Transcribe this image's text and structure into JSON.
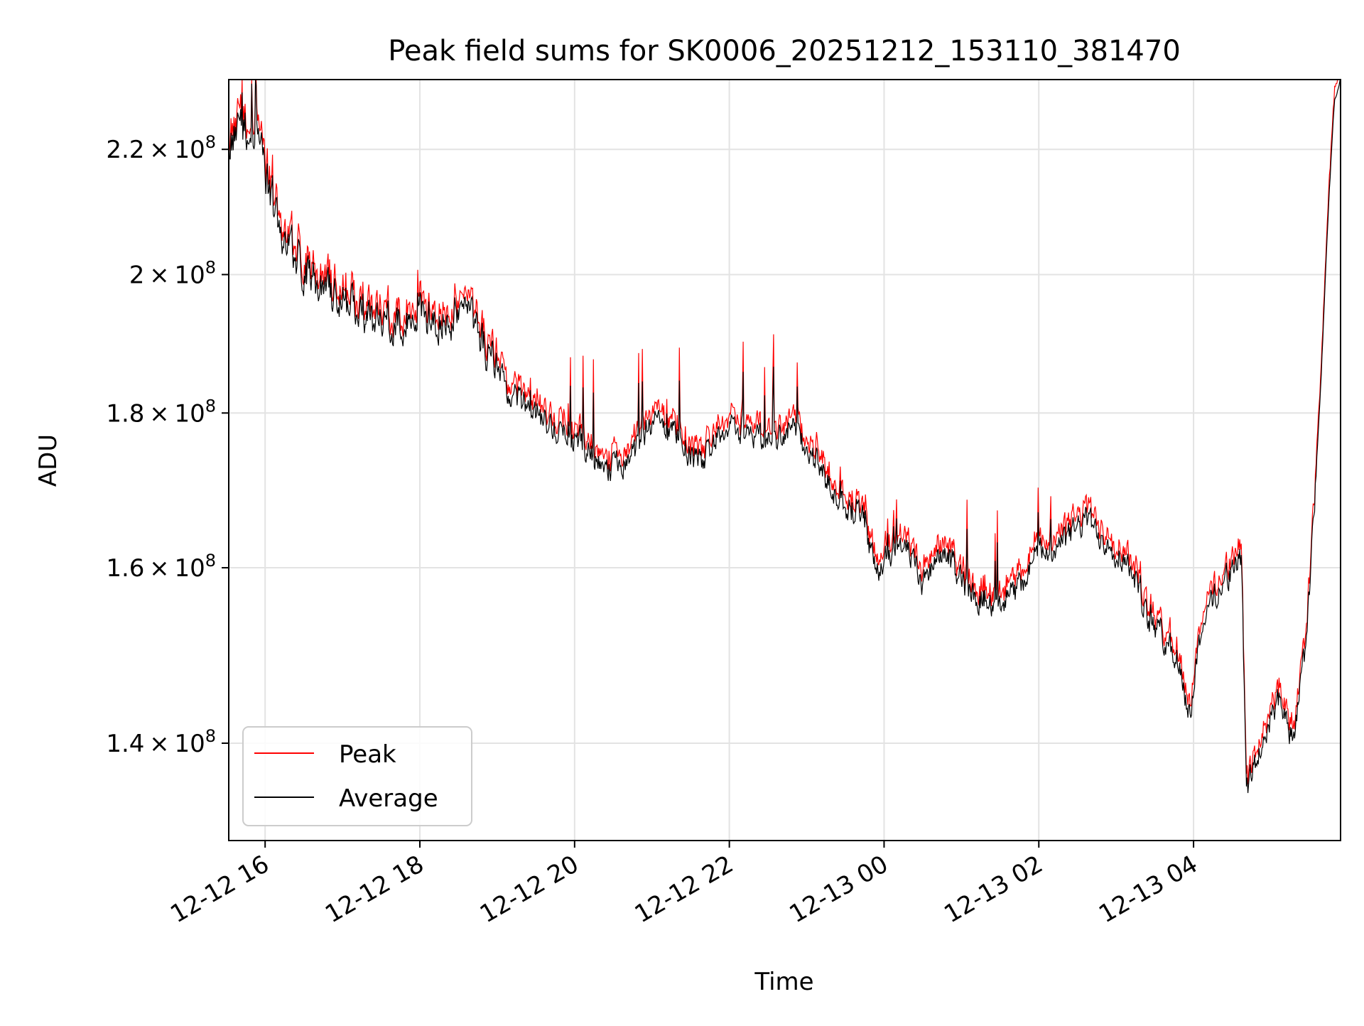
{
  "chart_data": {
    "type": "line",
    "title": "Peak field sums for SK0006_20251212_153110_381470",
    "xlabel": "Time",
    "ylabel": "ADU",
    "x_range_hours": [
      15.53,
      29.9
    ],
    "y_scale": "log",
    "ylim": [
      130000000,
      232000000
    ],
    "x_ticks": [
      {
        "hour": 16,
        "label": "12-12 16"
      },
      {
        "hour": 18,
        "label": "12-12 18"
      },
      {
        "hour": 20,
        "label": "12-12 20"
      },
      {
        "hour": 22,
        "label": "12-12 22"
      },
      {
        "hour": 24,
        "label": "12-13 00"
      },
      {
        "hour": 26,
        "label": "12-13 02"
      },
      {
        "hour": 28,
        "label": "12-13 04"
      }
    ],
    "y_ticks": [
      {
        "value": 140000000,
        "mant": "1.4",
        "exp": "8"
      },
      {
        "value": 160000000,
        "mant": "1.6",
        "exp": "8"
      },
      {
        "value": 180000000,
        "mant": "1.8",
        "exp": "8"
      },
      {
        "value": 200000000,
        "mant": "2",
        "exp": "8"
      },
      {
        "value": 220000000,
        "mant": "2.2",
        "exp": "8"
      }
    ],
    "grid": true,
    "legend": {
      "position": "lower-left",
      "items": [
        {
          "label": "Peak",
          "color": "#ff0000"
        },
        {
          "label": "Average",
          "color": "#000000"
        }
      ]
    },
    "series": [
      {
        "name": "Peak",
        "color": "#ff0000",
        "peak_offset_fraction": 0.006
      },
      {
        "name": "Average",
        "color": "#000000",
        "anchors": [
          [
            15.53,
            221000000
          ],
          [
            15.7,
            224000000
          ],
          [
            15.9,
            223000000
          ],
          [
            16.0,
            216000000
          ],
          [
            16.2,
            207000000
          ],
          [
            16.5,
            201000000
          ],
          [
            16.8,
            197000000
          ],
          [
            17.1,
            196000000
          ],
          [
            17.4,
            193000000
          ],
          [
            17.7,
            193000000
          ],
          [
            18.0,
            194000000
          ],
          [
            18.3,
            193000000
          ],
          [
            18.6,
            195000000
          ],
          [
            18.9,
            188000000
          ],
          [
            19.2,
            182000000
          ],
          [
            19.5,
            180000000
          ],
          [
            19.8,
            177000000
          ],
          [
            20.1,
            176000000
          ],
          [
            20.4,
            172000000
          ],
          [
            20.7,
            174000000
          ],
          [
            21.0,
            179000000
          ],
          [
            21.3,
            177000000
          ],
          [
            21.6,
            173000000
          ],
          [
            21.9,
            178000000
          ],
          [
            22.2,
            178000000
          ],
          [
            22.5,
            176000000
          ],
          [
            22.8,
            178000000
          ],
          [
            23.1,
            174000000
          ],
          [
            23.4,
            168000000
          ],
          [
            23.7,
            167000000
          ],
          [
            23.9,
            159000000
          ],
          [
            24.2,
            164000000
          ],
          [
            24.5,
            158000000
          ],
          [
            24.8,
            162000000
          ],
          [
            25.1,
            157000000
          ],
          [
            25.4,
            156000000
          ],
          [
            25.7,
            157000000
          ],
          [
            26.0,
            162000000
          ],
          [
            26.3,
            163000000
          ],
          [
            26.6,
            166000000
          ],
          [
            26.9,
            163000000
          ],
          [
            27.2,
            160000000
          ],
          [
            27.4,
            154000000
          ],
          [
            27.6,
            152000000
          ],
          [
            27.8,
            149000000
          ],
          [
            27.95,
            143000000
          ],
          [
            28.1,
            153000000
          ],
          [
            28.3,
            157000000
          ],
          [
            28.5,
            160000000
          ],
          [
            28.62,
            161000000
          ],
          [
            28.68,
            135000000
          ],
          [
            28.9,
            140000000
          ],
          [
            29.1,
            145000000
          ],
          [
            29.3,
            140000000
          ],
          [
            29.45,
            151000000
          ],
          [
            29.55,
            165000000
          ],
          [
            29.65,
            185000000
          ],
          [
            29.75,
            212000000
          ],
          [
            29.82,
            228000000
          ],
          [
            29.9,
            232000000
          ]
        ]
      }
    ]
  }
}
